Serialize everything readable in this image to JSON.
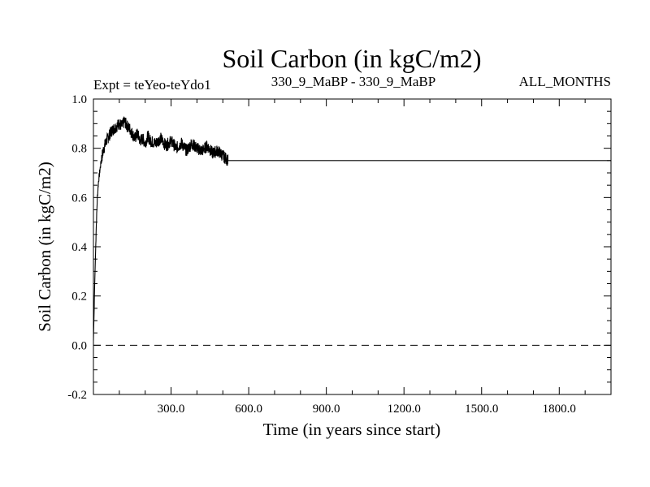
{
  "chart_data": {
    "type": "line",
    "title": "Soil Carbon (in kgC/m2)",
    "subtitle_left": "Expt = teYeo-teYdo1",
    "subtitle_center": "330_9_MaBP - 330_9_MaBP",
    "subtitle_right": "ALL_MONTHS",
    "xlabel": "Time (in years since start)",
    "ylabel": "Soil Carbon (in kgC/m2)",
    "xlim": [
      0,
      2000
    ],
    "ylim": [
      -0.2,
      1.0
    ],
    "x_ticks": [
      {
        "value": 300,
        "label": "300.0"
      },
      {
        "value": 600,
        "label": "600.0"
      },
      {
        "value": 900,
        "label": "900.0"
      },
      {
        "value": 1200,
        "label": "1200.0"
      },
      {
        "value": 1500,
        "label": "1500.0"
      },
      {
        "value": 1800,
        "label": "1800.0"
      }
    ],
    "y_ticks": [
      {
        "value": -0.2,
        "label": "-0.2"
      },
      {
        "value": 0.0,
        "label": "0.0"
      },
      {
        "value": 0.2,
        "label": "0.2"
      },
      {
        "value": 0.4,
        "label": "0.4"
      },
      {
        "value": 0.6,
        "label": "0.6"
      },
      {
        "value": 0.8,
        "label": "0.8"
      },
      {
        "value": 1.0,
        "label": "1.0"
      }
    ],
    "reference_line": {
      "y": 0.0,
      "style": "dashed"
    },
    "series": [
      {
        "name": "Soil Carbon",
        "x": [
          0,
          5,
          10,
          15,
          20,
          30,
          40,
          50,
          60,
          70,
          80,
          90,
          100,
          110,
          120,
          130,
          140,
          150,
          160,
          170,
          180,
          190,
          200,
          210,
          220,
          240,
          260,
          280,
          300,
          320,
          340,
          360,
          380,
          400,
          420,
          440,
          460,
          480,
          500,
          510,
          520,
          2000
        ],
        "y": [
          0.02,
          0.25,
          0.45,
          0.6,
          0.67,
          0.75,
          0.8,
          0.83,
          0.85,
          0.87,
          0.88,
          0.89,
          0.9,
          0.89,
          0.91,
          0.89,
          0.88,
          0.86,
          0.84,
          0.86,
          0.83,
          0.84,
          0.82,
          0.85,
          0.83,
          0.82,
          0.84,
          0.81,
          0.83,
          0.8,
          0.82,
          0.79,
          0.82,
          0.8,
          0.79,
          0.81,
          0.78,
          0.79,
          0.77,
          0.76,
          0.75,
          0.75
        ],
        "noisy_until": 520,
        "noise_amplitude": 0.025
      }
    ]
  }
}
